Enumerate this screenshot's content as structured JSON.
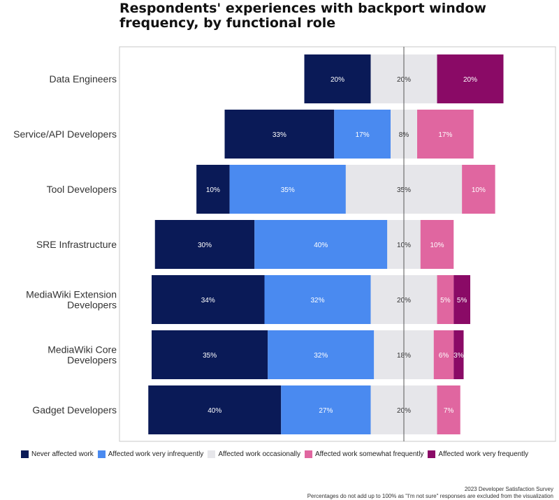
{
  "colors": {
    "never": "#0a1a57",
    "very_infrequently": "#4a8af0",
    "occasionally": "#e6e6ea",
    "somewhat_frequently": "#e066a0",
    "very_frequently": "#8a0a66"
  },
  "footer": {
    "source": "2023 Developer Satisfaction Survey",
    "note": "Percentages do not add up to 100% as \"I'm not sure\" responses are excluded from the visualization"
  },
  "chart_data": {
    "type": "bar",
    "orientation": "horizontal-diverging",
    "title": "Respondents' experiences with backport window frequency, by functional role",
    "categories": [
      "Data Engineers",
      "Service/API Developers",
      "Tool Developers",
      "SRE Infrastructure",
      "MediaWiki Extension Developers",
      "MediaWiki Core Developers",
      "Gadget Developers"
    ],
    "series": [
      {
        "name": "Never affected work",
        "key": "never",
        "values": [
          20,
          33,
          10,
          30,
          34,
          35,
          40
        ],
        "labels": [
          "20%",
          "33%",
          "10%",
          "30%",
          "34%",
          "35%",
          "40%"
        ]
      },
      {
        "name": "Affected work very infrequently",
        "key": "very_infrequently",
        "values": [
          0,
          17,
          35,
          40,
          32,
          32,
          27
        ],
        "labels": [
          "",
          "17%",
          "35%",
          "40%",
          "32%",
          "32%",
          "27%"
        ]
      },
      {
        "name": "Affected work occasionally",
        "key": "occasionally",
        "values": [
          20,
          8,
          35,
          10,
          20,
          18,
          20
        ],
        "labels": [
          "20%",
          "8%",
          "35%",
          "10%",
          "20%",
          "18%",
          "20%"
        ]
      },
      {
        "name": "Affected work somewhat frequently",
        "key": "somewhat_frequently",
        "values": [
          0,
          17,
          10,
          10,
          5,
          6,
          7
        ],
        "labels": [
          "",
          "17%",
          "10%",
          "10%",
          "5%",
          "6%",
          "7%"
        ]
      },
      {
        "name": "Affected work very frequently",
        "key": "very_frequently",
        "values": [
          20,
          0,
          0,
          0,
          5,
          3,
          0
        ],
        "labels": [
          "20%",
          "",
          "",
          "",
          "5%",
          "3%",
          ""
        ]
      }
    ],
    "legend_position": "bottom",
    "grid": false
  }
}
